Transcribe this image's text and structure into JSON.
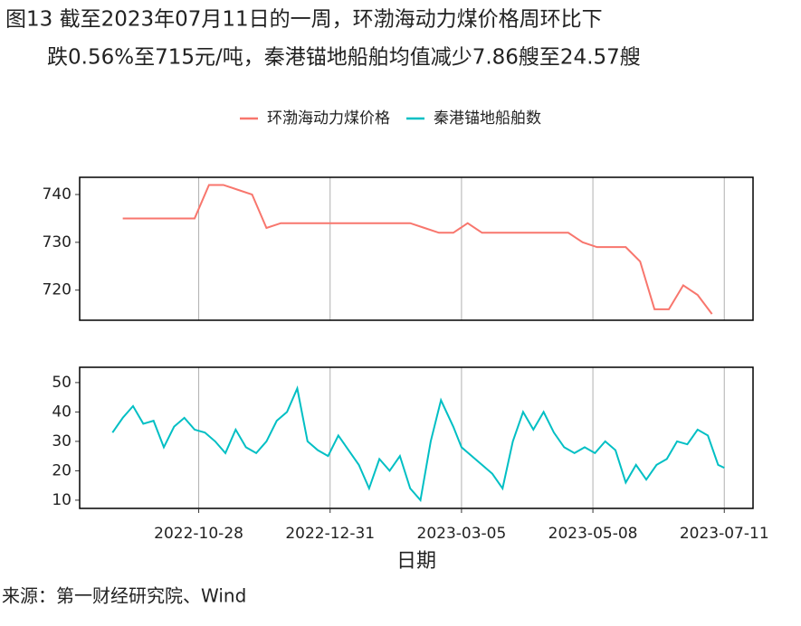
{
  "title": [
    "图13  截至2023年07月11日的一周，环渤海动力煤价格周环比下",
    "跌0.56%至715元/吨，秦港锚地船舶均值减少7.86艘至24.57艘"
  ],
  "source": "来源：第一财经研究院、Wind",
  "chart_data": [
    {
      "type": "line",
      "x": [
        "2022-09-21",
        "2022-09-28",
        "2022-10-05",
        "2022-10-12",
        "2022-10-19",
        "2022-10-26",
        "2022-11-02",
        "2022-11-09",
        "2022-11-16",
        "2022-11-23",
        "2022-11-30",
        "2022-12-07",
        "2022-12-14",
        "2022-12-21",
        "2022-12-28",
        "2023-01-04",
        "2023-01-11",
        "2023-01-18",
        "2023-01-25",
        "2023-02-01",
        "2023-02-08",
        "2023-02-15",
        "2023-02-22",
        "2023-03-01",
        "2023-03-08",
        "2023-03-15",
        "2023-03-22",
        "2023-03-29",
        "2023-04-05",
        "2023-04-12",
        "2023-04-19",
        "2023-04-26",
        "2023-05-03",
        "2023-05-10",
        "2023-05-17",
        "2023-05-24",
        "2023-05-31",
        "2023-06-07",
        "2023-06-14",
        "2023-06-21",
        "2023-06-28",
        "2023-07-05"
      ],
      "series": [
        {
          "name": "环渤海动力煤价格",
          "color": "#F8766D",
          "values": [
            735,
            735,
            735,
            735,
            735,
            735,
            742,
            742,
            741,
            740,
            733,
            734,
            734,
            734,
            734,
            734,
            734,
            734,
            734,
            734,
            734,
            733,
            732,
            732,
            734,
            732,
            732,
            732,
            732,
            732,
            732,
            732,
            730,
            729,
            729,
            729,
            726,
            716,
            716,
            721,
            719,
            715
          ]
        }
      ],
      "xlim": [
        "2022-08-31",
        "2023-07-25"
      ],
      "xticks": [
        "2022-10-28",
        "2022-12-31",
        "2023-03-05",
        "2023-05-08",
        "2023-07-11"
      ],
      "ylim": [
        713.7,
        743.6
      ],
      "yticks": [
        720,
        730,
        740
      ],
      "grid": true
    },
    {
      "type": "line",
      "x": [
        "2022-09-16",
        "2022-09-21",
        "2022-09-26",
        "2022-10-01",
        "2022-10-06",
        "2022-10-11",
        "2022-10-16",
        "2022-10-21",
        "2022-10-26",
        "2022-10-31",
        "2022-11-05",
        "2022-11-10",
        "2022-11-15",
        "2022-11-20",
        "2022-11-25",
        "2022-11-30",
        "2022-12-05",
        "2022-12-10",
        "2022-12-15",
        "2022-12-20",
        "2022-12-25",
        "2022-12-30",
        "2023-01-04",
        "2023-01-09",
        "2023-01-14",
        "2023-01-19",
        "2023-01-24",
        "2023-01-29",
        "2023-02-03",
        "2023-02-08",
        "2023-02-13",
        "2023-02-18",
        "2023-02-23",
        "2023-03-01",
        "2023-03-05",
        "2023-03-10",
        "2023-03-15",
        "2023-03-20",
        "2023-03-25",
        "2023-03-30",
        "2023-04-04",
        "2023-04-09",
        "2023-04-14",
        "2023-04-19",
        "2023-04-24",
        "2023-04-29",
        "2023-05-04",
        "2023-05-09",
        "2023-05-14",
        "2023-05-19",
        "2023-05-24",
        "2023-05-29",
        "2023-06-03",
        "2023-06-08",
        "2023-06-13",
        "2023-06-18",
        "2023-06-23",
        "2023-06-28",
        "2023-07-03",
        "2023-07-08",
        "2023-07-11"
      ],
      "series": [
        {
          "name": "秦港锚地船舶数",
          "color": "#00BFC4",
          "values": [
            33,
            38,
            42,
            36,
            37,
            28,
            35,
            38,
            34,
            33,
            30,
            26,
            34,
            28,
            26,
            30,
            37,
            40,
            48,
            30,
            27,
            25,
            32,
            27,
            22,
            14,
            24,
            20,
            25,
            14,
            10,
            30,
            44,
            35,
            28,
            25,
            22,
            19,
            14,
            30,
            40,
            34,
            40,
            33,
            28,
            26,
            28,
            26,
            30,
            27,
            16,
            22,
            17,
            22,
            24,
            30,
            29,
            34,
            32,
            22,
            21
          ]
        }
      ],
      "xlim": [
        "2022-08-31",
        "2023-07-25"
      ],
      "xticks": [
        "2022-10-28",
        "2022-12-31",
        "2023-03-05",
        "2023-05-08",
        "2023-07-11"
      ],
      "ylim": [
        7.2,
        55.2
      ],
      "yticks": [
        10,
        20,
        30,
        40,
        50
      ],
      "grid": true,
      "xlabel": "日期"
    }
  ]
}
